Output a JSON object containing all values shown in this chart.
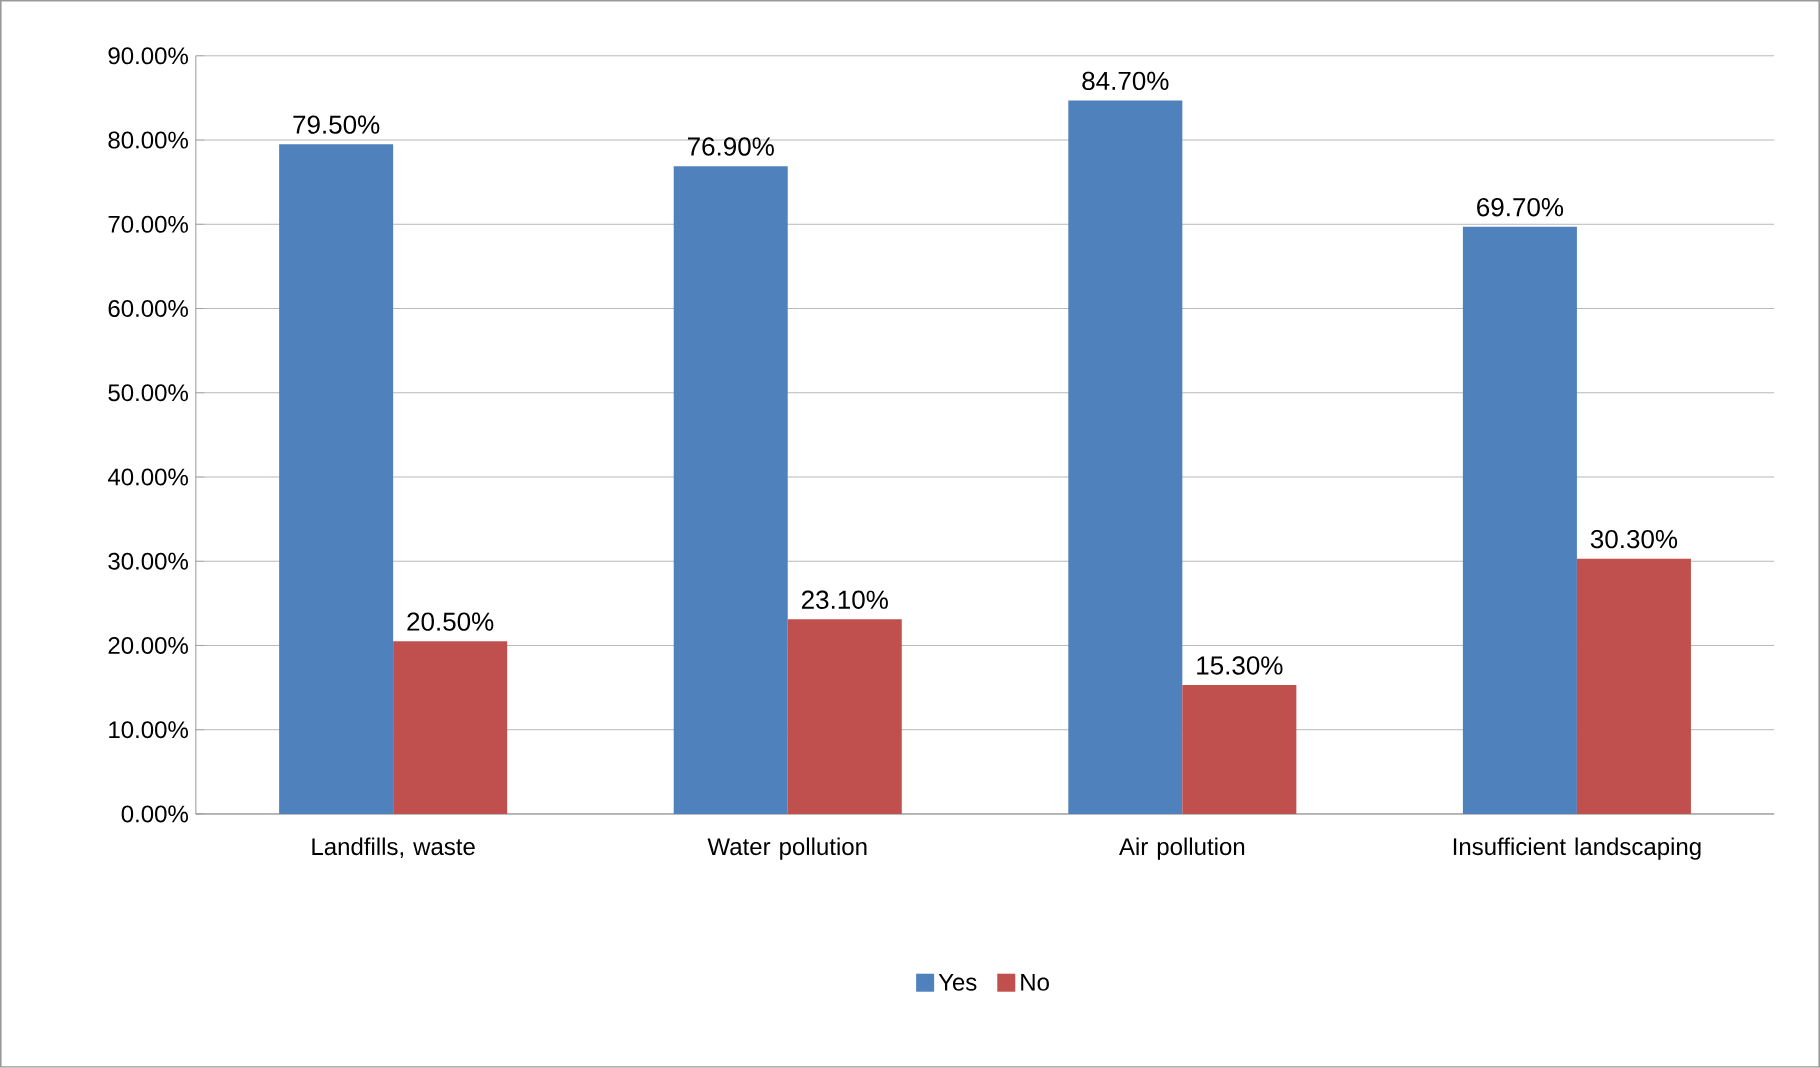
{
  "chart_data": {
    "type": "bar",
    "categories": [
      "Landfills, waste",
      "Water pollution",
      "Air pollution",
      "Insufficient landscaping"
    ],
    "series": [
      {
        "name": "Yes",
        "color": "#4f81bd",
        "values": [
          79.5,
          76.9,
          84.7,
          69.7
        ],
        "value_labels": [
          "79.50%",
          "76.90%",
          "84.70%",
          "69.70%"
        ]
      },
      {
        "name": "No",
        "color": "#c0504d",
        "values": [
          20.5,
          23.1,
          15.3,
          30.3
        ],
        "value_labels": [
          "20.50%",
          "23.10%",
          "15.30%",
          "30.30%"
        ]
      }
    ],
    "ylim": [
      0,
      90
    ],
    "yticks": [
      {
        "value": 0,
        "label": "0.00%"
      },
      {
        "value": 10,
        "label": "10.00%"
      },
      {
        "value": 20,
        "label": "20.00%"
      },
      {
        "value": 30,
        "label": "30.00%"
      },
      {
        "value": 40,
        "label": "40.00%"
      },
      {
        "value": 50,
        "label": "50.00%"
      },
      {
        "value": 60,
        "label": "60.00%"
      },
      {
        "value": 70,
        "label": "70.00%"
      },
      {
        "value": 80,
        "label": "80.00%"
      },
      {
        "value": 90,
        "label": "90.00%"
      }
    ],
    "grid": "y",
    "legend": "bottom"
  }
}
